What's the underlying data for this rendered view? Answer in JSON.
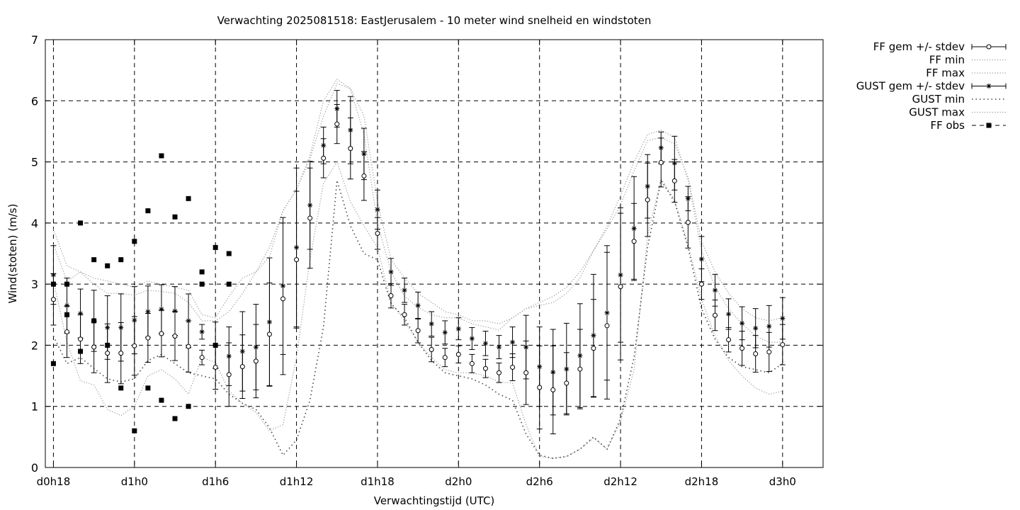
{
  "chart_data": {
    "type": "line",
    "title": "Verwachting 2025081518: EastJerusalem - 10 meter wind snelheid en windstoten",
    "xlabel": "Verwachtingstijd (UTC)",
    "ylabel": "Wind(stoten) (m/s)",
    "ylim": [
      0,
      7
    ],
    "xlim": [
      -0.6,
      57
    ],
    "x_unit": "hours since d0h18",
    "grid": true,
    "legend_position": "outside-right",
    "yticks": [
      "0",
      "1",
      "2",
      "3",
      "4",
      "5",
      "6",
      "7"
    ],
    "xticks": [
      {
        "x": 0,
        "label": "d0h18"
      },
      {
        "x": 6,
        "label": "d1h0"
      },
      {
        "x": 12,
        "label": "d1h6"
      },
      {
        "x": 18,
        "label": "d1h12"
      },
      {
        "x": 24,
        "label": "d1h18"
      },
      {
        "x": 30,
        "label": "d2h0"
      },
      {
        "x": 36,
        "label": "d2h6"
      },
      {
        "x": 42,
        "label": "d2h12"
      },
      {
        "x": 48,
        "label": "d2h18"
      },
      {
        "x": 54,
        "label": "d3h0"
      }
    ],
    "legend": [
      "FF gem +/- stdev",
      "FF min",
      "FF max",
      "GUST gem +/- stdev",
      "GUST min",
      "GUST max",
      "FF obs"
    ],
    "x": [
      0,
      1,
      2,
      3,
      4,
      5,
      6,
      7,
      8,
      9,
      10,
      11,
      12,
      13,
      14,
      15,
      16,
      17,
      18,
      19,
      20,
      21,
      22,
      23,
      24,
      25,
      26,
      27,
      28,
      29,
      30,
      31,
      32,
      33,
      34,
      35,
      36,
      37,
      38,
      39,
      40,
      41,
      42,
      43,
      44,
      45,
      46,
      47,
      48,
      49,
      50,
      51,
      52,
      53,
      54
    ],
    "ff_mean": [
      2.75,
      2.22,
      2.1,
      1.97,
      1.87,
      1.87,
      1.99,
      2.12,
      2.19,
      2.15,
      1.98,
      1.8,
      1.64,
      1.52,
      1.65,
      1.74,
      2.18,
      2.76,
      3.4,
      4.08,
      5.06,
      5.62,
      5.22,
      4.77,
      3.83,
      2.81,
      2.5,
      2.24,
      1.93,
      1.8,
      1.85,
      1.7,
      1.62,
      1.55,
      1.64,
      1.55,
      1.31,
      1.27,
      1.38,
      1.61,
      1.95,
      2.32,
      2.96,
      3.7,
      4.38,
      4.99,
      4.69,
      4.01,
      3.0,
      2.49,
      2.09,
      1.95,
      1.86,
      1.89,
      2.01
    ],
    "ff_sd": [
      0.42,
      0.42,
      0.4,
      0.42,
      0.48,
      0.5,
      0.48,
      0.4,
      0.38,
      0.4,
      0.42,
      0.12,
      0.36,
      0.52,
      0.52,
      0.6,
      0.84,
      1.24,
      1.12,
      0.82,
      0.32,
      0.32,
      0.5,
      0.4,
      0.26,
      0.2,
      0.17,
      0.2,
      0.2,
      0.15,
      0.14,
      0.15,
      0.15,
      0.16,
      0.22,
      0.52,
      0.68,
      0.72,
      0.5,
      0.65,
      0.8,
      1.2,
      1.2,
      0.62,
      0.6,
      0.4,
      0.35,
      0.42,
      0.25,
      0.25,
      0.2,
      0.28,
      0.3,
      0.32,
      0.33
    ],
    "gust_mean": [
      3.15,
      2.65,
      2.52,
      2.4,
      2.29,
      2.29,
      2.41,
      2.55,
      2.59,
      2.56,
      2.4,
      2.22,
      2.0,
      1.82,
      1.9,
      1.97,
      2.38,
      2.97,
      3.6,
      4.29,
      5.27,
      5.87,
      5.52,
      5.13,
      4.22,
      3.2,
      2.9,
      2.65,
      2.35,
      2.21,
      2.27,
      2.11,
      2.03,
      1.97,
      2.05,
      1.97,
      1.65,
      1.56,
      1.61,
      1.83,
      2.16,
      2.53,
      3.15,
      3.91,
      4.6,
      5.23,
      4.98,
      4.4,
      3.41,
      2.9,
      2.51,
      2.36,
      2.28,
      2.31,
      2.44
    ],
    "gust_sd": [
      0.48,
      0.45,
      0.4,
      0.5,
      0.52,
      0.55,
      0.55,
      0.42,
      0.4,
      0.4,
      0.44,
      0.12,
      0.38,
      0.48,
      0.65,
      0.7,
      1.05,
      1.12,
      1.3,
      0.72,
      0.3,
      0.3,
      0.55,
      0.42,
      0.32,
      0.22,
      0.2,
      0.22,
      0.2,
      0.19,
      0.18,
      0.18,
      0.2,
      0.19,
      0.25,
      0.52,
      0.65,
      0.7,
      0.75,
      0.85,
      1.0,
      1.1,
      1.1,
      0.85,
      0.52,
      0.26,
      0.44,
      0.2,
      0.37,
      0.26,
      0.25,
      0.27,
      0.32,
      0.34,
      0.34
    ],
    "ff_min": [
      3.05,
      2.05,
      1.42,
      1.35,
      0.95,
      0.85,
      1.0,
      1.5,
      1.6,
      1.45,
      1.2,
      1.8,
      1.72,
      1.25,
      1.05,
      0.9,
      0.6,
      0.7,
      1.8,
      3.4,
      4.65,
      5.0,
      4.35,
      3.95,
      3.6,
      2.7,
      2.4,
      2.05,
      1.8,
      1.6,
      1.55,
      1.55,
      1.5,
      1.4,
      1.38,
      0.7,
      0.18,
      0.15,
      0.18,
      0.3,
      0.48,
      0.3,
      0.75,
      1.6,
      3.8,
      4.72,
      4.38,
      3.65,
      2.75,
      2.15,
      1.75,
      1.5,
      1.3,
      1.2,
      1.25
    ],
    "ff_max": [
      3.9,
      3.3,
      3.2,
      3.0,
      2.85,
      2.85,
      2.82,
      2.9,
      2.88,
      2.85,
      2.7,
      2.4,
      2.4,
      2.55,
      2.85,
      3.2,
      3.6,
      4.2,
      4.55,
      5.1,
      6.0,
      6.35,
      6.2,
      5.45,
      4.0,
      3.2,
      2.8,
      2.62,
      2.5,
      2.45,
      2.45,
      2.35,
      2.3,
      2.25,
      2.45,
      2.6,
      2.65,
      2.7,
      2.85,
      3.1,
      3.55,
      3.95,
      4.45,
      5.0,
      5.45,
      5.52,
      5.4,
      4.7,
      3.55,
      2.95,
      2.6,
      2.35,
      2.15,
      2.05,
      2.05
    ],
    "gust_min": [
      2.15,
      1.7,
      1.8,
      1.62,
      1.45,
      1.4,
      1.45,
      1.75,
      1.85,
      1.7,
      1.55,
      1.5,
      1.45,
      1.2,
      1.05,
      0.95,
      0.65,
      0.2,
      0.45,
      1.1,
      2.3,
      4.7,
      3.95,
      3.5,
      3.4,
      2.68,
      2.45,
      2.05,
      1.75,
      1.55,
      1.5,
      1.45,
      1.35,
      1.2,
      1.1,
      0.55,
      0.2,
      0.15,
      0.18,
      0.3,
      0.5,
      0.3,
      0.8,
      1.8,
      3.6,
      4.7,
      4.35,
      3.6,
      2.6,
      2.1,
      1.8,
      1.65,
      1.6,
      1.55,
      1.7
    ],
    "gust_max": [
      3.65,
      3.05,
      3.2,
      3.1,
      3.05,
      3.0,
      2.95,
      3.05,
      3.0,
      2.95,
      2.9,
      2.5,
      2.45,
      2.8,
      3.1,
      3.2,
      3.45,
      4.2,
      4.55,
      5.05,
      5.75,
      6.28,
      6.2,
      5.75,
      4.35,
      3.4,
      3.1,
      2.85,
      2.7,
      2.55,
      2.5,
      2.4,
      2.4,
      2.35,
      2.45,
      2.6,
      2.7,
      2.8,
      2.95,
      3.2,
      3.55,
      3.9,
      4.3,
      4.85,
      5.35,
      5.4,
      5.3,
      4.75,
      3.7,
      3.2,
      2.85,
      2.6,
      2.45,
      2.4,
      2.45
    ],
    "ff_obs_x": [
      0,
      0,
      1,
      1,
      2,
      2,
      3,
      3,
      4,
      4,
      5,
      5,
      6,
      6,
      7,
      7,
      8,
      8,
      9,
      9,
      10,
      10,
      11,
      11,
      12,
      12,
      13,
      13
    ],
    "ff_obs_y": [
      3.0,
      1.7,
      3.0,
      2.5,
      4.0,
      1.9,
      3.4,
      2.4,
      3.3,
      2.0,
      3.4,
      1.3,
      3.7,
      0.6,
      4.2,
      1.3,
      5.1,
      1.1,
      4.1,
      0.8,
      4.4,
      1.0,
      3.2,
      3.0,
      3.6,
      2.0,
      3.5,
      3.0
    ]
  }
}
